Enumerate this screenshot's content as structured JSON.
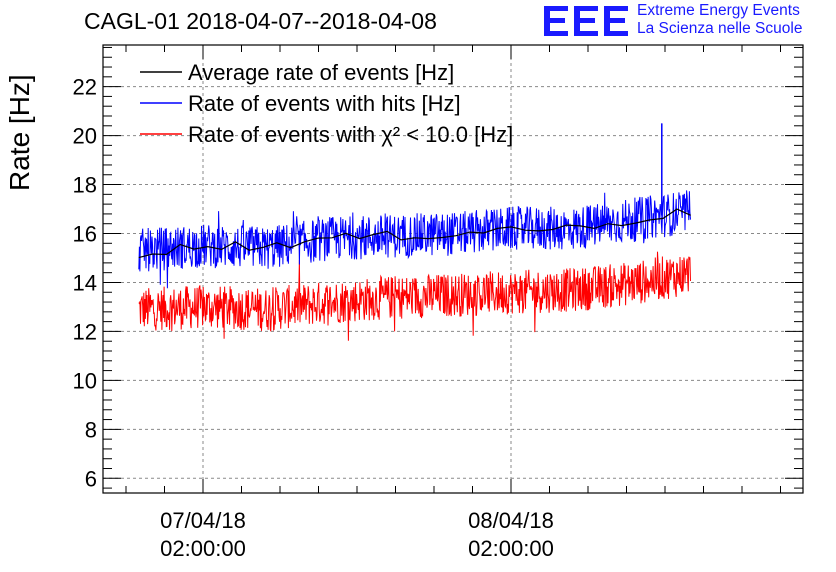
{
  "header": {
    "title": "CAGL-01 2018-04-07--2018-04-08",
    "logo_line1": "Extreme Energy Events",
    "logo_line2": "La Scienza nelle Scuole",
    "logo_color": "#1a1aff"
  },
  "chart_data": {
    "type": "line",
    "title": "CAGL-01 2018-04-07--2018-04-08",
    "xlabel": "",
    "ylabel": "Rate [Hz]",
    "ylim": [
      5.4,
      23.7
    ],
    "yticks": [
      6,
      8,
      10,
      12,
      14,
      16,
      18,
      20,
      22
    ],
    "xticks": [
      {
        "date": "07/04/18",
        "time": "02:00:00"
      },
      {
        "date": "08/04/18",
        "time": "02:00:00"
      }
    ],
    "grid": true,
    "legend_position": "top-left",
    "x_description": "time, 2018-04-06 ~21:00 to 2018-04-08 ~16:00",
    "series": [
      {
        "name": "Average rate of events [Hz]",
        "color": "#000000",
        "x": [
          "2018-04-06 21:00",
          "2018-04-07 02:00",
          "2018-04-07 07:00",
          "2018-04-07 12:00",
          "2018-04-07 17:00",
          "2018-04-07 22:00",
          "2018-04-08 02:00",
          "2018-04-08 07:00",
          "2018-04-08 12:00",
          "2018-04-08 16:00"
        ],
        "values": [
          15.2,
          15.5,
          15.5,
          15.8,
          15.9,
          16.0,
          16.2,
          16.2,
          16.6,
          16.9
        ]
      },
      {
        "name": "Rate of events with hits [Hz]",
        "color": "#0000ff",
        "x": [
          "2018-04-06 21:00",
          "2018-04-07 02:00",
          "2018-04-07 07:00",
          "2018-04-07 12:00",
          "2018-04-07 17:00",
          "2018-04-07 22:00",
          "2018-04-08 02:00",
          "2018-04-08 07:00",
          "2018-04-08 12:00",
          "2018-04-08 16:00"
        ],
        "values": [
          15.3,
          15.5,
          15.4,
          15.8,
          15.9,
          16.0,
          16.2,
          16.2,
          16.6,
          16.9
        ],
        "spike": {
          "x": "2018-04-08 13:45",
          "value": 20.5
        }
      },
      {
        "name": "Rate of events with χ² < 10.0 [Hz]",
        "color": "#ff0000",
        "x": [
          "2018-04-06 21:00",
          "2018-04-07 02:00",
          "2018-04-07 07:00",
          "2018-04-07 12:00",
          "2018-04-07 17:00",
          "2018-04-07 22:00",
          "2018-04-08 02:00",
          "2018-04-08 07:00",
          "2018-04-08 12:00",
          "2018-04-08 16:00"
        ],
        "values": [
          12.9,
          13.0,
          12.9,
          13.2,
          13.4,
          13.5,
          13.6,
          13.7,
          14.0,
          14.4
        ]
      }
    ]
  }
}
